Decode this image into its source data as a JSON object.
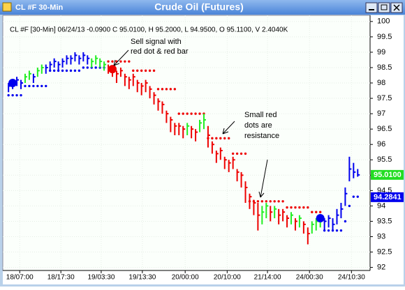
{
  "chart_data": {
    "type": "hlc",
    "window_title": "CL #F 30-Min",
    "title": "Crude Oil (Futures)",
    "subtitle": "CL #F [30-Min] 06/24/13 -0.0900 C 95.0100, H 95.2000, L 94.9500, O 95.1100, V 2.4040K",
    "x": [
      0,
      1,
      2,
      3,
      4,
      5,
      6,
      7,
      8,
      9,
      10,
      11,
      12,
      13,
      14,
      15,
      16,
      17,
      18,
      19,
      20,
      21,
      22,
      23,
      24,
      25,
      26,
      27,
      28,
      29,
      30,
      31,
      32,
      33,
      34,
      35,
      36,
      37,
      38,
      39,
      40,
      41,
      42,
      43,
      44,
      45,
      46,
      47,
      48,
      49,
      50,
      51,
      52,
      53,
      54,
      55,
      56,
      57,
      58,
      59,
      60,
      61,
      62,
      63,
      64,
      65,
      66,
      67,
      68,
      69,
      70,
      71,
      72,
      73,
      74,
      75,
      76,
      77,
      78,
      79,
      80,
      81,
      82,
      83,
      84
    ],
    "high": [
      98.0,
      98.1,
      98.2,
      98.1,
      98.3,
      98.4,
      98.3,
      98.5,
      98.6,
      98.6,
      98.7,
      98.8,
      98.7,
      98.8,
      98.9,
      98.9,
      99.0,
      98.9,
      99.0,
      98.9,
      98.8,
      98.9,
      98.8,
      98.7,
      98.6,
      98.5,
      98.4,
      98.5,
      98.3,
      98.2,
      98.3,
      98.1,
      98.0,
      98.1,
      97.9,
      97.7,
      97.5,
      97.4,
      97.1,
      96.9,
      96.7,
      96.7,
      96.6,
      96.7,
      96.6,
      96.5,
      96.8,
      97.0,
      96.6,
      96.1,
      95.8,
      95.9,
      95.6,
      95.5,
      95.6,
      95.2,
      95.1,
      94.8,
      94.4,
      94.2,
      94.1,
      94.0,
      94.1,
      94.0,
      94.0,
      93.9,
      93.9,
      93.7,
      93.8,
      93.6,
      93.7,
      93.5,
      93.3,
      93.5,
      93.6,
      93.7,
      93.6,
      93.7,
      93.6,
      93.9,
      94.1,
      94.6,
      95.6,
      95.4,
      95.2
    ],
    "low": [
      97.7,
      97.8,
      97.9,
      97.8,
      98.0,
      98.1,
      98.0,
      98.2,
      98.3,
      98.3,
      98.4,
      98.5,
      98.4,
      98.5,
      98.6,
      98.6,
      98.7,
      98.6,
      98.7,
      98.6,
      98.5,
      98.6,
      98.5,
      98.4,
      98.3,
      98.2,
      98.0,
      98.2,
      97.9,
      97.8,
      97.9,
      97.7,
      97.6,
      97.7,
      97.5,
      97.3,
      97.1,
      97.0,
      96.7,
      96.4,
      96.3,
      96.3,
      96.2,
      96.3,
      96.2,
      96.1,
      96.4,
      96.5,
      95.9,
      95.7,
      95.4,
      95.5,
      95.2,
      95.1,
      95.2,
      94.8,
      94.6,
      94.1,
      93.9,
      93.7,
      93.2,
      93.4,
      93.6,
      93.5,
      93.6,
      93.4,
      93.5,
      93.3,
      93.4,
      93.2,
      93.3,
      93.1,
      92.75,
      93.1,
      93.2,
      93.3,
      93.2,
      93.3,
      93.2,
      93.4,
      93.6,
      94.0,
      94.8,
      94.9,
      94.95
    ],
    "close": [
      97.9,
      98.0,
      98.1,
      98.0,
      98.2,
      98.3,
      98.2,
      98.4,
      98.5,
      98.5,
      98.6,
      98.7,
      98.6,
      98.7,
      98.8,
      98.8,
      98.9,
      98.8,
      98.9,
      98.8,
      98.7,
      98.8,
      98.7,
      98.6,
      98.5,
      98.4,
      98.3,
      98.4,
      98.2,
      98.1,
      98.2,
      98.0,
      97.9,
      98.0,
      97.8,
      97.6,
      97.4,
      97.3,
      97.0,
      96.8,
      96.6,
      96.6,
      96.5,
      96.6,
      96.5,
      96.4,
      96.7,
      96.8,
      96.3,
      96.0,
      95.7,
      95.8,
      95.5,
      95.4,
      95.5,
      95.1,
      95.0,
      94.6,
      94.3,
      94.1,
      93.7,
      93.8,
      94.0,
      93.8,
      93.9,
      93.7,
      93.8,
      93.6,
      93.7,
      93.5,
      93.6,
      93.4,
      93.1,
      93.4,
      93.5,
      93.6,
      93.5,
      93.6,
      93.4,
      93.7,
      93.9,
      94.4,
      95.2,
      95.1,
      95.01
    ],
    "bar_colors": [
      "#0000ee",
      "#0000ee",
      "#0000ee",
      "#0000ee",
      "#22ee22",
      "#22ee22",
      "#0000ee",
      "#22ee22",
      "#22ee22",
      "#0000ee",
      "#0000ee",
      "#0000ee",
      "#0000ee",
      "#0000ee",
      "#0000ee",
      "#0000ee",
      "#0000ee",
      "#0000ee",
      "#0000ee",
      "#0000ee",
      "#22ee22",
      "#22ee22",
      "#22ee22",
      "#22ee22",
      "#ee0000",
      "#ee0000",
      "#ee0000",
      "#ee0000",
      "#ee0000",
      "#ee0000",
      "#ee0000",
      "#ee0000",
      "#ee0000",
      "#ee0000",
      "#ee0000",
      "#ee0000",
      "#ee0000",
      "#ee0000",
      "#ee0000",
      "#ee0000",
      "#ee0000",
      "#ee0000",
      "#ee0000",
      "#22ee22",
      "#ee0000",
      "#ee0000",
      "#22ee22",
      "#22ee22",
      "#ee0000",
      "#ee0000",
      "#ee0000",
      "#ee0000",
      "#ee0000",
      "#ee0000",
      "#ee0000",
      "#ee0000",
      "#ee0000",
      "#ee0000",
      "#ee0000",
      "#ee0000",
      "#ee0000",
      "#22ee22",
      "#22ee22",
      "#ee0000",
      "#22ee22",
      "#ee0000",
      "#ee0000",
      "#ee0000",
      "#22ee22",
      "#ee0000",
      "#22ee22",
      "#ee0000",
      "#ee0000",
      "#22ee22",
      "#22ee22",
      "#22ee22",
      "#0000ee",
      "#0000ee",
      "#0000ee",
      "#0000ee",
      "#0000ee",
      "#0000ee",
      "#0000ee",
      "#0000ee",
      "#0000ee"
    ],
    "series": [
      {
        "color": "#0000ee",
        "values": [
          97.6,
          97.6,
          97.6,
          97.6,
          97.9,
          97.9,
          97.9,
          97.9,
          97.9,
          97.9,
          98.4,
          98.4,
          98.4,
          98.4,
          98.4,
          98.4,
          98.4,
          98.4,
          98.5,
          98.5,
          98.5,
          98.5,
          98.5,
          98.5,
          null,
          null,
          null,
          null,
          null,
          null,
          null,
          null,
          null,
          null,
          null,
          null,
          null,
          null,
          null,
          null,
          null,
          null,
          null,
          null,
          null,
          null,
          null,
          null,
          null,
          null,
          null,
          null,
          null,
          null,
          null,
          null,
          null,
          null,
          null,
          null,
          null,
          null,
          null,
          null,
          null,
          null,
          null,
          null,
          null,
          null,
          null,
          null,
          null,
          null,
          null,
          null,
          93.2,
          93.2,
          93.2,
          93.2,
          93.2,
          93.5,
          94.0,
          94.3,
          94.3
        ]
      },
      {
        "color": "#ee0000",
        "values": [
          null,
          null,
          null,
          null,
          null,
          null,
          null,
          null,
          null,
          null,
          null,
          null,
          null,
          null,
          null,
          null,
          null,
          null,
          null,
          null,
          null,
          null,
          null,
          null,
          98.7,
          98.7,
          98.7,
          98.7,
          98.7,
          98.7,
          98.4,
          98.4,
          98.4,
          98.4,
          98.4,
          98.4,
          97.8,
          97.8,
          97.8,
          97.8,
          97.8,
          97.0,
          97.0,
          97.0,
          97.0,
          97.0,
          97.0,
          97.0,
          96.2,
          96.2,
          96.2,
          96.2,
          96.2,
          96.2,
          95.7,
          95.7,
          95.7,
          95.7,
          94.15,
          94.15,
          94.15,
          94.15,
          94.15,
          94.15,
          94.15,
          94.15,
          94.15,
          93.95,
          93.95,
          93.95,
          93.95,
          93.95,
          93.95,
          93.8,
          93.8,
          93.8,
          null,
          null,
          null,
          null,
          null,
          null,
          null,
          null,
          null
        ]
      }
    ],
    "signals": [
      {
        "x": 1,
        "value": 98.0,
        "color": "#0000ee"
      },
      {
        "x": 25,
        "value": 98.45,
        "color": "#ee0000"
      },
      {
        "x": 75,
        "value": 93.6,
        "color": "#0000ee"
      }
    ],
    "price_labels": [
      {
        "value": 95.01,
        "label": "95.0100",
        "color": "#22dd22"
      },
      {
        "value": 94.2841,
        "label": "94.2841",
        "color": "#0000ee"
      }
    ],
    "annotations": [
      {
        "lines": [
          "Sell signal with",
          "red dot & red bar"
        ]
      },
      {
        "lines": [
          "Small red",
          "dots are",
          "resistance"
        ]
      }
    ],
    "xlim": [
      -0.7,
      85.3
    ],
    "xticks": [
      {
        "value": 2.7,
        "label": "18/07:00"
      },
      {
        "value": 12.6,
        "label": "18/17:30"
      },
      {
        "value": 22.3,
        "label": "19/03:30"
      },
      {
        "value": 32.2,
        "label": "19/13:30"
      },
      {
        "value": 42.5,
        "label": "20/00:00"
      },
      {
        "value": 52.6,
        "label": "20/10:00"
      },
      {
        "value": 62.3,
        "label": "21/14:00"
      },
      {
        "value": 72.4,
        "label": "24/00:30"
      },
      {
        "value": 82.5,
        "label": "24/10:30"
      }
    ],
    "ylim": [
      91.9,
      100.2
    ],
    "yticks": [
      92,
      92.5,
      93,
      93.5,
      94,
      94.5,
      95,
      95.5,
      96,
      96.5,
      97,
      97.5,
      98,
      98.5,
      99,
      99.5,
      100
    ],
    "grid": true
  }
}
